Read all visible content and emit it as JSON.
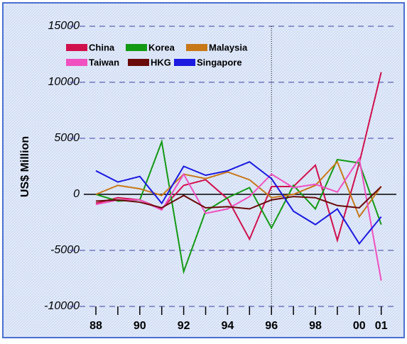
{
  "chart_data": {
    "type": "line",
    "y_label": "US$ Million",
    "categories": [
      "88",
      null,
      "90",
      null,
      "92",
      null,
      "94",
      null,
      "96",
      null,
      "98",
      null,
      "00",
      "01"
    ],
    "ylim": [
      -10000,
      15000
    ],
    "yticks": [
      -10000,
      -5000,
      0,
      5000,
      10000,
      15000
    ],
    "grid": true,
    "marker_line": "96",
    "legend": "upper left",
    "series": [
      {
        "name": "China",
        "color": "#d0104c",
        "values": [
          -800,
          -300,
          -500,
          -1300,
          800,
          1300,
          -400,
          -4000,
          700,
          700,
          2600,
          -4100,
          2800,
          10900
        ]
      },
      {
        "name": "Korea",
        "color": "#139a13",
        "values": [
          0,
          -600,
          -500,
          4700,
          -6900,
          -1500,
          -300,
          600,
          -3000,
          800,
          -1300,
          3100,
          2800,
          -2700
        ]
      },
      {
        "name": "Malaysia",
        "color": "#c87818",
        "values": [
          0,
          800,
          500,
          -100,
          1800,
          1400,
          2000,
          1300,
          -300,
          0,
          800,
          2900,
          -2000,
          700
        ]
      },
      {
        "name": "Taiwan",
        "color": "#f050c0",
        "values": [
          -900,
          -500,
          -500,
          -1400,
          1800,
          -1700,
          -1300,
          -200,
          1800,
          600,
          900,
          200,
          3200,
          -7700
        ]
      },
      {
        "name": "HKG",
        "color": "#6a0a0a",
        "values": [
          -600,
          -500,
          -700,
          -1200,
          -100,
          -1200,
          -1100,
          -1300,
          -500,
          -200,
          -300,
          -1000,
          -1200,
          700
        ]
      },
      {
        "name": "Singapore",
        "color": "#1a1ae0",
        "values": [
          2100,
          1100,
          1600,
          -800,
          2500,
          1700,
          2100,
          2900,
          1400,
          -1500,
          -2700,
          -1300,
          -4400,
          -2000
        ]
      }
    ]
  }
}
